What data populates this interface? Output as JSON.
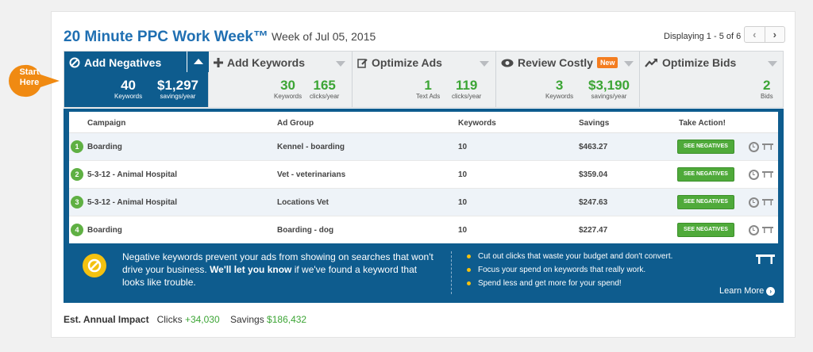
{
  "header": {
    "title": "20 Minute PPC Work Week™",
    "week": "Week of Jul 05, 2015",
    "displaying": "Displaying 1 - 5 of 6",
    "prev": "‹",
    "next": "›"
  },
  "start_callout": {
    "line1": "Start",
    "line2": "Here"
  },
  "tabs": [
    {
      "label": "Add Negatives",
      "icon": "no-icon",
      "stats": [
        {
          "num": "40",
          "lbl": "Keywords"
        },
        {
          "num": "$1,297",
          "lbl": "savings/year"
        }
      ]
    },
    {
      "label": "Add Keywords",
      "icon": "plus-icon",
      "stats": [
        {
          "num": "30",
          "lbl": "Keywords"
        },
        {
          "num": "165",
          "lbl": "clicks/year"
        }
      ]
    },
    {
      "label": "Optimize Ads",
      "icon": "edit-icon",
      "stats": [
        {
          "num": "1",
          "lbl": "Text Ads"
        },
        {
          "num": "119",
          "lbl": "clicks/year"
        }
      ]
    },
    {
      "label": "Review Costly",
      "badge": "New",
      "icon": "eye-icon",
      "stats": [
        {
          "num": "3",
          "lbl": "Keywords"
        },
        {
          "num": "$3,190",
          "lbl": "savings/year"
        }
      ]
    },
    {
      "label": "Optimize Bids",
      "icon": "trend-icon",
      "stats": [
        {
          "num": "2",
          "lbl": "Bids"
        }
      ]
    }
  ],
  "table": {
    "headers": [
      "Campaign",
      "Ad Group",
      "Keywords",
      "Savings",
      "Take Action!"
    ],
    "action_label": "SEE NEGATIVES",
    "rows": [
      {
        "rank": "1",
        "campaign": "Boarding",
        "ad_group": "Kennel - boarding",
        "keywords": "10",
        "savings": "$463.27"
      },
      {
        "rank": "2",
        "campaign": "5-3-12 - Animal Hospital",
        "ad_group": "Vet - veterinarians",
        "keywords": "10",
        "savings": "$359.04"
      },
      {
        "rank": "3",
        "campaign": "5-3-12 - Animal Hospital",
        "ad_group": "Locations Vet",
        "keywords": "10",
        "savings": "$247.63"
      },
      {
        "rank": "4",
        "campaign": "Boarding",
        "ad_group": "Boarding - dog",
        "keywords": "10",
        "savings": "$227.47"
      }
    ]
  },
  "info": {
    "text_a": "Negative keywords prevent your ads from showing on searches that won't drive your business.",
    "text_bold": "We'll let you know",
    "text_b": "if we've found a keyword that looks like trouble.",
    "bullets": [
      "Cut out clicks that waste your budget and don't convert.",
      "Focus your spend on keywords that really work.",
      "Spend less and get more for your spend!"
    ],
    "learn_more": "Learn More"
  },
  "impact": {
    "label": "Est. Annual Impact",
    "clicks_label": "Clicks",
    "clicks_value": "+34,030",
    "savings_label": "Savings",
    "savings_value": "$186,432"
  },
  "colors": {
    "brand_blue": "#0e5c8e",
    "green": "#3ca535",
    "orange": "#f47d20",
    "yellow": "#f4c10f"
  }
}
